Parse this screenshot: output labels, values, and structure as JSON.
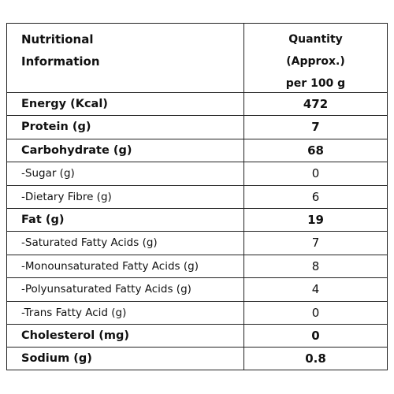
{
  "table": {
    "header": {
      "label_line1": "Nutritional",
      "label_line2": "Information",
      "qty_line1": "Quantity",
      "qty_line2": "(Approx.)",
      "qty_line3": "per 100 g"
    },
    "rows": [
      {
        "label": "Energy (Kcal)",
        "value": "472",
        "bold": true
      },
      {
        "label": "Protein (g)",
        "value": "7",
        "bold": true
      },
      {
        "label": "Carbohydrate (g)",
        "value": "68",
        "bold": true
      },
      {
        "label": "-Sugar (g)",
        "value": "0",
        "bold": false
      },
      {
        "label": "-Dietary Fibre (g)",
        "value": "6",
        "bold": false
      },
      {
        "label": "Fat (g)",
        "value": "19",
        "bold": true
      },
      {
        "label": "-Saturated Fatty Acids (g)",
        "value": "7",
        "bold": false
      },
      {
        "label": "-Monounsaturated Fatty Acids (g)",
        "value": "8",
        "bold": false
      },
      {
        "label": "-Polyunsaturated Fatty Acids (g)",
        "value": "4",
        "bold": false
      },
      {
        "label": "-Trans Fatty Acid (g)",
        "value": "0",
        "bold": false
      },
      {
        "label": "Cholesterol (mg)",
        "value": "0",
        "bold": true
      },
      {
        "label": "Sodium (g)",
        "value": "0.8",
        "bold": true
      }
    ]
  }
}
